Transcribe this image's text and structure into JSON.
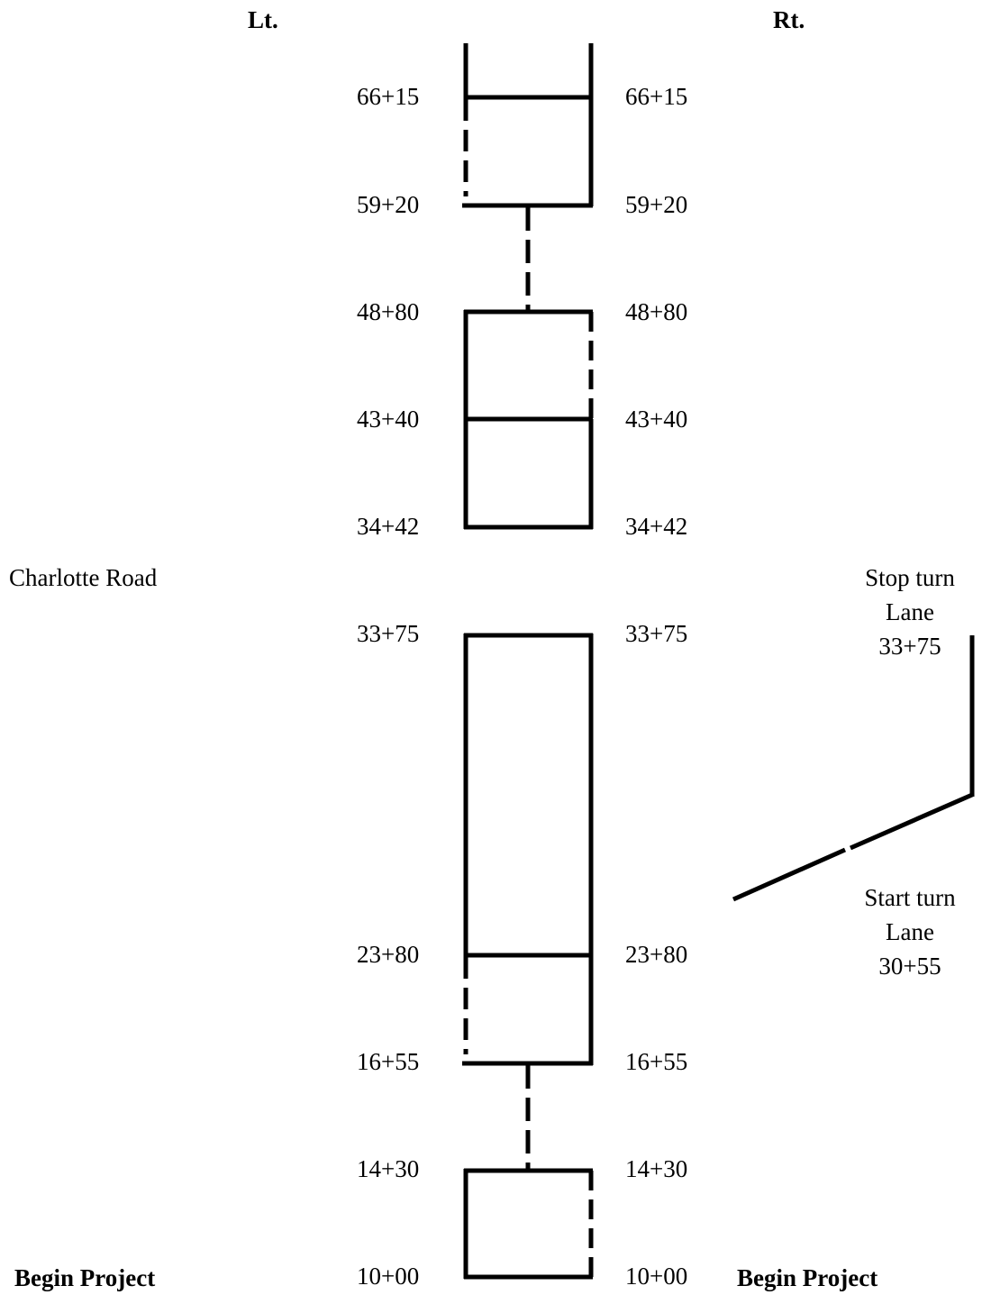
{
  "header": {
    "left_label": "Lt.",
    "right_label": "Rt."
  },
  "road_name": "Charlotte Road",
  "stations": [
    "66+15",
    "59+20",
    "48+80",
    "43+40",
    "34+42",
    "33+75",
    "23+80",
    "16+55",
    "14+30",
    "10+00"
  ],
  "turn_lane": {
    "stop_line1": "Stop turn",
    "stop_line2": "Lane",
    "stop_station": "33+75",
    "start_line1": "Start turn",
    "start_line2": "Lane",
    "start_station": "30+55"
  },
  "footer": {
    "left_label": "Begin Project",
    "right_label": "Begin Project"
  },
  "colors": {
    "line": "#000000",
    "background": "#ffffff"
  }
}
